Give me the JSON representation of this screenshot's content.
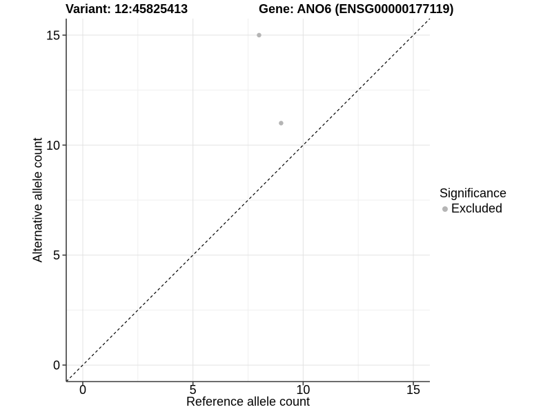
{
  "chart_data": {
    "type": "scatter",
    "title_left": "Variant: 12:45825413",
    "title_right": "Gene: ANO6 (ENSG00000177119)",
    "xlabel": "Reference allele count",
    "ylabel": "Alternative allele count",
    "xlim": [
      -0.75,
      15.75
    ],
    "ylim": [
      -0.75,
      15.75
    ],
    "x_ticks": [
      0,
      5,
      10,
      15
    ],
    "y_ticks": [
      0,
      5,
      10,
      15
    ],
    "x_minor": [
      2.5,
      7.5,
      12.5
    ],
    "y_minor": [
      2.5,
      7.5,
      12.5
    ],
    "grid": true,
    "series": [
      {
        "name": "Excluded",
        "color": "#b5b5b5",
        "points": [
          {
            "x": 8,
            "y": 15
          },
          {
            "x": 9,
            "y": 11
          }
        ]
      }
    ],
    "reference_line": {
      "type": "identity",
      "slope": 1,
      "intercept": 0,
      "style": "dashed",
      "color": "#000000"
    },
    "legend": {
      "title": "Significance",
      "position": "right",
      "items": [
        {
          "label": "Excluded",
          "color": "#b5b5b5"
        }
      ]
    },
    "colors": {
      "background": "#ffffff",
      "grid_major": "#e2e2e2",
      "grid_minor": "#efefef",
      "axis": "#3c3c3c",
      "text": "#000000"
    }
  }
}
